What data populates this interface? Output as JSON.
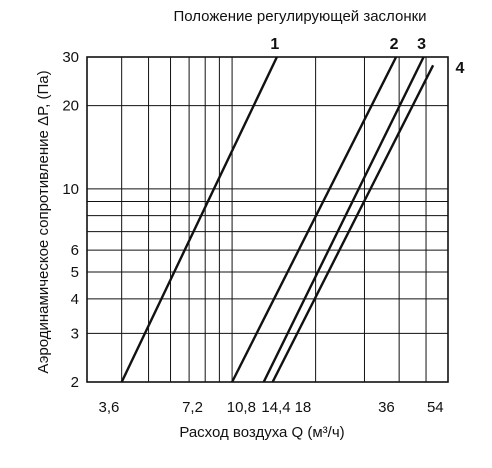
{
  "chart_data": {
    "type": "line",
    "title": "Положение регулирующей заслонки",
    "xlabel": "Расход воздуха Q (м³/ч)",
    "ylabel": "Аэродинамическое сопротивление ΔP, (Па)",
    "x_scale": "log",
    "y_scale": "log",
    "xlim": [
      3.0,
      60
    ],
    "ylim": [
      2,
      30
    ],
    "x_ticks": [
      3.6,
      7.2,
      10.8,
      14.4,
      18,
      36,
      54
    ],
    "x_tick_labels": [
      "3,6",
      "7,2",
      "10,8",
      "14,4",
      "18",
      "36",
      "54"
    ],
    "y_ticks": [
      2,
      3,
      4,
      5,
      6,
      10,
      20,
      30
    ],
    "y_tick_labels": [
      "2",
      "3",
      "4",
      "5",
      "6",
      "10",
      "20",
      "30"
    ],
    "grid": true,
    "series": [
      {
        "name": "1",
        "x": [
          4.0,
          14.5
        ],
        "y": [
          2,
          30
        ]
      },
      {
        "name": "2",
        "x": [
          10.0,
          39.0
        ],
        "y": [
          2,
          30
        ]
      },
      {
        "name": "3",
        "x": [
          13.0,
          49.0
        ],
        "y": [
          2,
          30
        ]
      },
      {
        "name": "4",
        "x": [
          14.0,
          53.0
        ],
        "y": [
          2,
          28
        ]
      }
    ]
  }
}
